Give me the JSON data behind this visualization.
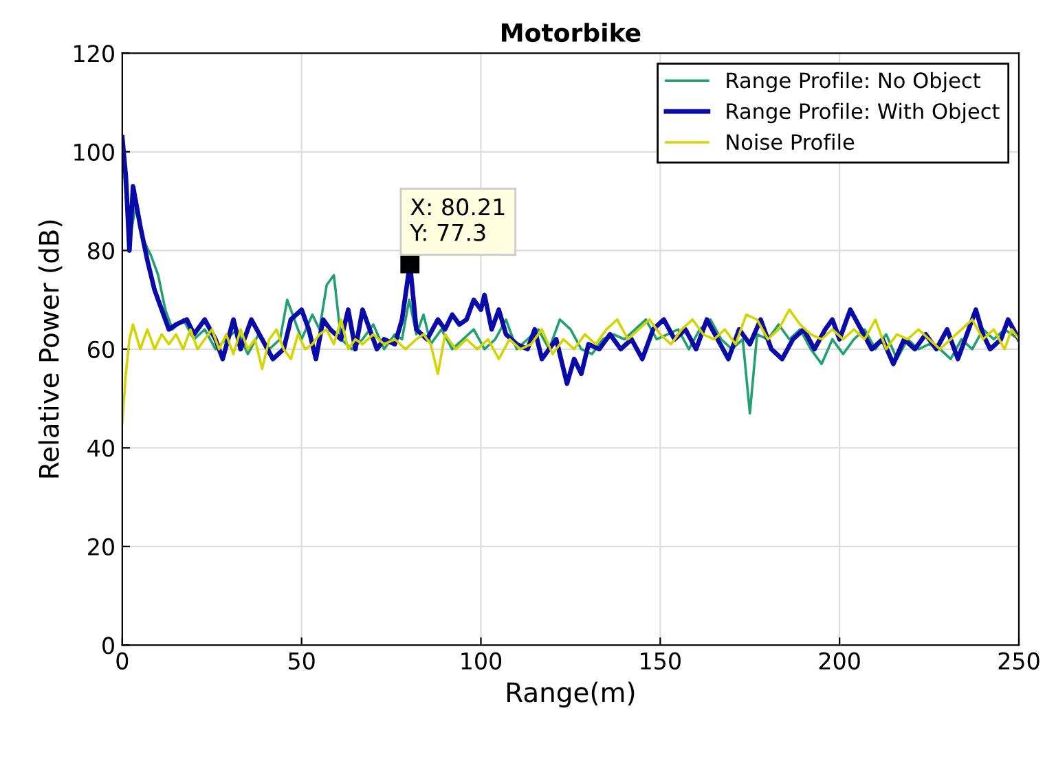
{
  "chart_data": {
    "type": "line",
    "title": "Motorbike",
    "xlabel": "Range(m)",
    "ylabel": "Relative Power (dB)",
    "xlim": [
      0,
      250
    ],
    "xticks": [
      0,
      50,
      100,
      150,
      200,
      250
    ],
    "ylim": [
      0,
      120
    ],
    "yticks": [
      0,
      20,
      40,
      60,
      80,
      100,
      120
    ],
    "grid": true,
    "legend": "top right",
    "annotations": [
      {
        "text": "X: 80.21\nY: 77.3",
        "x": 80.21,
        "y": 77.3
      }
    ],
    "series": [
      {
        "name": "Range Profile: No Object",
        "color": "#20a070",
        "x": [
          0,
          2,
          4,
          6,
          8,
          10,
          12,
          14,
          17,
          20,
          23,
          26,
          29,
          32,
          35,
          38,
          41,
          44,
          46,
          48,
          50,
          53,
          55,
          57,
          59,
          61,
          64,
          67,
          70,
          73,
          76,
          78,
          80,
          82,
          84,
          86,
          89,
          92,
          95,
          98,
          101,
          104,
          107,
          110,
          113,
          116,
          119,
          122,
          125,
          128,
          131,
          134,
          137,
          140,
          143,
          146,
          149,
          152,
          155,
          158,
          161,
          164,
          167,
          170,
          173,
          175,
          177,
          180,
          183,
          186,
          189,
          192,
          195,
          198,
          201,
          204,
          207,
          210,
          213,
          216,
          219,
          222,
          225,
          228,
          231,
          234,
          237,
          240,
          243,
          246,
          250
        ],
        "values": [
          100,
          82,
          90,
          82,
          79,
          75,
          68,
          64,
          66,
          62,
          64,
          60,
          62,
          64,
          59,
          63,
          60,
          62,
          70,
          66,
          62,
          67,
          64,
          73,
          75,
          62,
          60,
          62,
          65,
          60,
          63,
          62,
          70,
          63,
          67,
          61,
          64,
          60,
          62,
          64,
          60,
          62,
          66,
          60,
          62,
          64,
          60,
          66,
          64,
          60,
          59,
          62,
          63,
          62,
          64,
          66,
          62,
          63,
          64,
          60,
          64,
          66,
          62,
          60,
          62,
          47,
          63,
          62,
          65,
          62,
          64,
          60,
          57,
          62,
          59,
          62,
          64,
          60,
          63,
          58,
          62,
          60,
          61,
          60,
          58,
          62,
          60,
          64,
          62,
          64,
          62
        ]
      },
      {
        "name": "Range Profile: With Object",
        "color": "#0a0aa8",
        "x": [
          0,
          1,
          2,
          3,
          5,
          7,
          9,
          11,
          13,
          15,
          18,
          20,
          23,
          26,
          28,
          31,
          33,
          36,
          39,
          42,
          45,
          47,
          50,
          52,
          54,
          56,
          58,
          61,
          63,
          65,
          67,
          69,
          71,
          73,
          76,
          78,
          80.21,
          82,
          85,
          88,
          90,
          92,
          94,
          96,
          98,
          100,
          101,
          103,
          105,
          107,
          110,
          113,
          115,
          117,
          119,
          121,
          124,
          126,
          128,
          130,
          133,
          136,
          139,
          142,
          145,
          148,
          151,
          154,
          157,
          160,
          163,
          166,
          169,
          172,
          175,
          178,
          181,
          184,
          187,
          190,
          193,
          196,
          198,
          200,
          203,
          206,
          209,
          212,
          215,
          218,
          221,
          224,
          227,
          230,
          233,
          236,
          238,
          240,
          242,
          245,
          247,
          250
        ],
        "values": [
          103,
          95,
          80,
          93,
          85,
          78,
          72,
          68,
          64,
          65,
          66,
          63,
          66,
          62,
          58,
          66,
          60,
          66,
          62,
          58,
          60,
          66,
          68,
          64,
          58,
          66,
          64,
          62,
          68,
          60,
          68,
          64,
          60,
          62,
          61,
          66,
          77.3,
          64,
          62,
          66,
          64,
          67,
          65,
          66,
          70,
          68,
          71,
          64,
          68,
          63,
          61,
          60,
          64,
          58,
          60,
          62,
          53,
          58,
          55,
          61,
          60,
          63,
          60,
          62,
          58,
          64,
          66,
          62,
          64,
          60,
          66,
          62,
          58,
          64,
          61,
          66,
          60,
          58,
          62,
          64,
          60,
          64,
          66,
          62,
          68,
          64,
          60,
          62,
          57,
          62,
          60,
          63,
          60,
          64,
          58,
          64,
          68,
          63,
          60,
          62,
          66,
          62
        ]
      },
      {
        "name": "Noise Profile",
        "color": "#d4d400",
        "x": [
          0,
          1,
          2,
          3,
          5,
          7,
          9,
          11,
          13,
          15,
          17,
          19,
          21,
          23,
          25,
          27,
          29,
          31,
          33,
          35,
          37,
          39,
          41,
          43,
          45,
          47,
          49,
          51,
          53,
          55,
          57,
          59,
          61,
          63,
          65,
          67,
          70,
          73,
          76,
          79,
          82,
          84,
          86,
          88,
          90,
          93,
          96,
          99,
          102,
          105,
          108,
          111,
          114,
          117,
          120,
          123,
          126,
          129,
          132,
          135,
          138,
          141,
          144,
          147,
          150,
          153,
          156,
          159,
          162,
          165,
          168,
          171,
          174,
          177,
          180,
          183,
          186,
          189,
          192,
          195,
          198,
          201,
          204,
          207,
          210,
          213,
          216,
          219,
          222,
          225,
          228,
          231,
          234,
          237,
          240,
          243,
          246,
          248,
          250
        ],
        "values": [
          45,
          55,
          62,
          65,
          60,
          64,
          60,
          63,
          61,
          63,
          60,
          64,
          60,
          62,
          64,
          60,
          63,
          59,
          64,
          60,
          62,
          56,
          62,
          64,
          60,
          58,
          63,
          60,
          61,
          63,
          64,
          61,
          66,
          60,
          62,
          61,
          63,
          61,
          62,
          60,
          62,
          63,
          61,
          55,
          63,
          60,
          62,
          60,
          62,
          58,
          62,
          60,
          61,
          64,
          59,
          62,
          60,
          63,
          61,
          64,
          66,
          62,
          64,
          66,
          63,
          61,
          64,
          66,
          63,
          62,
          64,
          61,
          67,
          66,
          62,
          64,
          68,
          65,
          63,
          62,
          64,
          62,
          64,
          62,
          66,
          60,
          63,
          62,
          64,
          62,
          60,
          62,
          64,
          66,
          62,
          64,
          60,
          64,
          62
        ]
      }
    ]
  }
}
